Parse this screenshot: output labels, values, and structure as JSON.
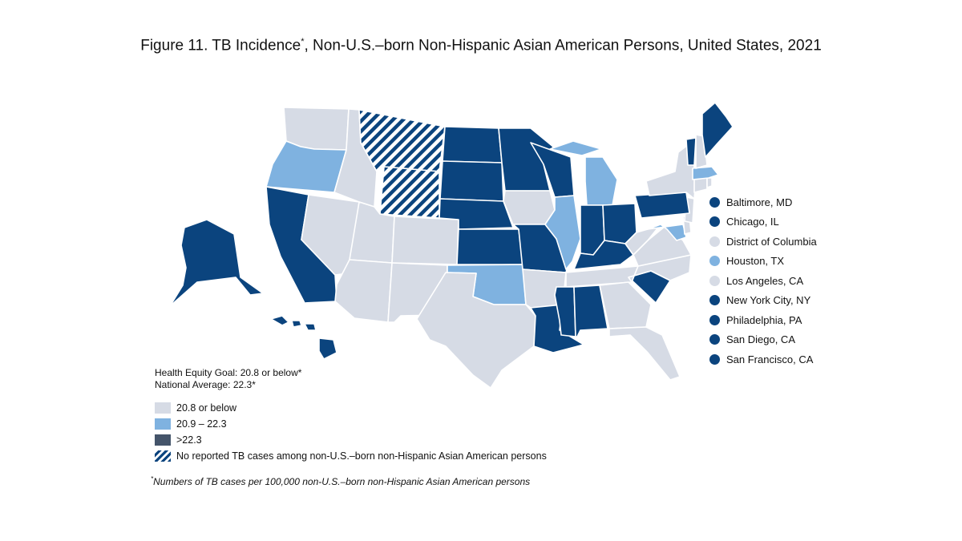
{
  "title": {
    "main": "Figure 11. TB Incidence",
    "asterisk": "*",
    "rest": ", Non-U.S.–born Non-Hispanic Asian American Persons, United States, 2021"
  },
  "colors": {
    "low": "#d6dbe5",
    "mid": "#7fb2e0",
    "high": "#0b447e",
    "high_legend": "#44546a",
    "hatch": "#0b447e"
  },
  "states": [
    {
      "name": "Washington",
      "category": "low"
    },
    {
      "name": "Oregon",
      "category": "mid"
    },
    {
      "name": "California",
      "category": "high"
    },
    {
      "name": "Nevada",
      "category": "low"
    },
    {
      "name": "Idaho",
      "category": "low"
    },
    {
      "name": "Montana",
      "category": "none"
    },
    {
      "name": "Wyoming",
      "category": "none"
    },
    {
      "name": "Utah",
      "category": "low"
    },
    {
      "name": "Arizona",
      "category": "low"
    },
    {
      "name": "Colorado",
      "category": "low"
    },
    {
      "name": "New Mexico",
      "category": "low"
    },
    {
      "name": "North Dakota",
      "category": "high"
    },
    {
      "name": "South Dakota",
      "category": "high"
    },
    {
      "name": "Nebraska",
      "category": "high"
    },
    {
      "name": "Kansas",
      "category": "high"
    },
    {
      "name": "Oklahoma",
      "category": "mid"
    },
    {
      "name": "Texas",
      "category": "low"
    },
    {
      "name": "Minnesota",
      "category": "high"
    },
    {
      "name": "Iowa",
      "category": "low"
    },
    {
      "name": "Missouri",
      "category": "high"
    },
    {
      "name": "Arkansas",
      "category": "low"
    },
    {
      "name": "Louisiana",
      "category": "high"
    },
    {
      "name": "Wisconsin",
      "category": "high"
    },
    {
      "name": "Illinois",
      "category": "mid"
    },
    {
      "name": "Michigan",
      "category": "mid"
    },
    {
      "name": "Indiana",
      "category": "high"
    },
    {
      "name": "Ohio",
      "category": "high"
    },
    {
      "name": "Kentucky",
      "category": "high"
    },
    {
      "name": "Tennessee",
      "category": "low"
    },
    {
      "name": "Mississippi",
      "category": "high"
    },
    {
      "name": "Alabama",
      "category": "high"
    },
    {
      "name": "Georgia",
      "category": "low"
    },
    {
      "name": "Florida",
      "category": "low"
    },
    {
      "name": "South Carolina",
      "category": "high"
    },
    {
      "name": "North Carolina",
      "category": "low"
    },
    {
      "name": "Virginia",
      "category": "low"
    },
    {
      "name": "West Virginia",
      "category": "low"
    },
    {
      "name": "Maryland",
      "category": "mid"
    },
    {
      "name": "Delaware",
      "category": "low"
    },
    {
      "name": "New Jersey",
      "category": "low"
    },
    {
      "name": "Pennsylvania",
      "category": "high"
    },
    {
      "name": "New York",
      "category": "low"
    },
    {
      "name": "Connecticut",
      "category": "low"
    },
    {
      "name": "Rhode Island",
      "category": "low"
    },
    {
      "name": "Massachusetts",
      "category": "mid"
    },
    {
      "name": "Vermont",
      "category": "high"
    },
    {
      "name": "New Hampshire",
      "category": "low"
    },
    {
      "name": "Maine",
      "category": "high"
    },
    {
      "name": "Alaska",
      "category": "high"
    },
    {
      "name": "Hawaii",
      "category": "high"
    }
  ],
  "cities": [
    {
      "label": "Baltimore, MD",
      "category": "high"
    },
    {
      "label": "Chicago, IL",
      "category": "high"
    },
    {
      "label": "District of Columbia",
      "category": "low"
    },
    {
      "label": "Houston, TX",
      "category": "mid"
    },
    {
      "label": "Los Angeles, CA",
      "category": "low"
    },
    {
      "label": "New York City, NY",
      "category": "high"
    },
    {
      "label": "Philadelphia, PA",
      "category": "high"
    },
    {
      "label": "San Diego, CA",
      "category": "high"
    },
    {
      "label": "San Francisco, CA",
      "category": "high"
    }
  ],
  "goal": {
    "line1": "Health Equity Goal:  20.8 or below*",
    "line2": "National Average: 22.3*"
  },
  "legend": [
    {
      "label": "20.8 or below",
      "category": "low"
    },
    {
      "label": "20.9 – 22.3",
      "category": "mid"
    },
    {
      "label": ">22.3",
      "category": "high_legend"
    },
    {
      "label": "No reported TB cases among non-U.S.–born non-Hispanic Asian American persons",
      "category": "hatch"
    }
  ],
  "footnote": {
    "marker": "*",
    "text": "Numbers of TB cases per 100,000 non-U.S.–born non-Hispanic Asian American persons"
  }
}
